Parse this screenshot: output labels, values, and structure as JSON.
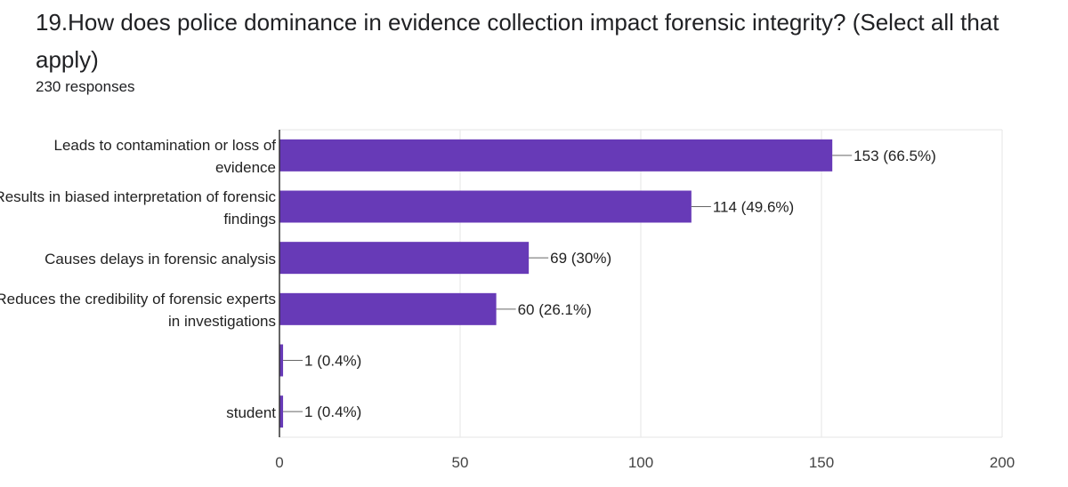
{
  "question": {
    "title": "19.How does police dominance in evidence collection impact forensic integrity? (Select all that apply)",
    "responses": "230 responses"
  },
  "colors": {
    "bar": "#673ab7",
    "grid": "#e6e6e6",
    "axis": "#333333",
    "leader": "#666666"
  },
  "chart_data": {
    "type": "bar",
    "orientation": "horizontal",
    "categories": [
      "Leads to contamination or loss of evidence",
      "Results in biased interpretation of forensic findings",
      "Causes delays in forensic analysis",
      "Reduces the credibility of forensic experts in investigations",
      "",
      "student"
    ],
    "values": [
      153,
      114,
      69,
      60,
      1,
      1
    ],
    "data_labels": [
      "153 (66.5%)",
      "114 (49.6%)",
      "69 (30%)",
      "60 (26.1%)",
      "1 (0.4%)",
      "1 (0.4%)"
    ],
    "xlim": [
      0,
      200
    ],
    "xticks": [
      0,
      50,
      100,
      150,
      200
    ],
    "xtick_labels": [
      "0",
      "50",
      "100",
      "150",
      "200"
    ],
    "grid": true,
    "title": "",
    "xlabel": "",
    "ylabel": ""
  }
}
